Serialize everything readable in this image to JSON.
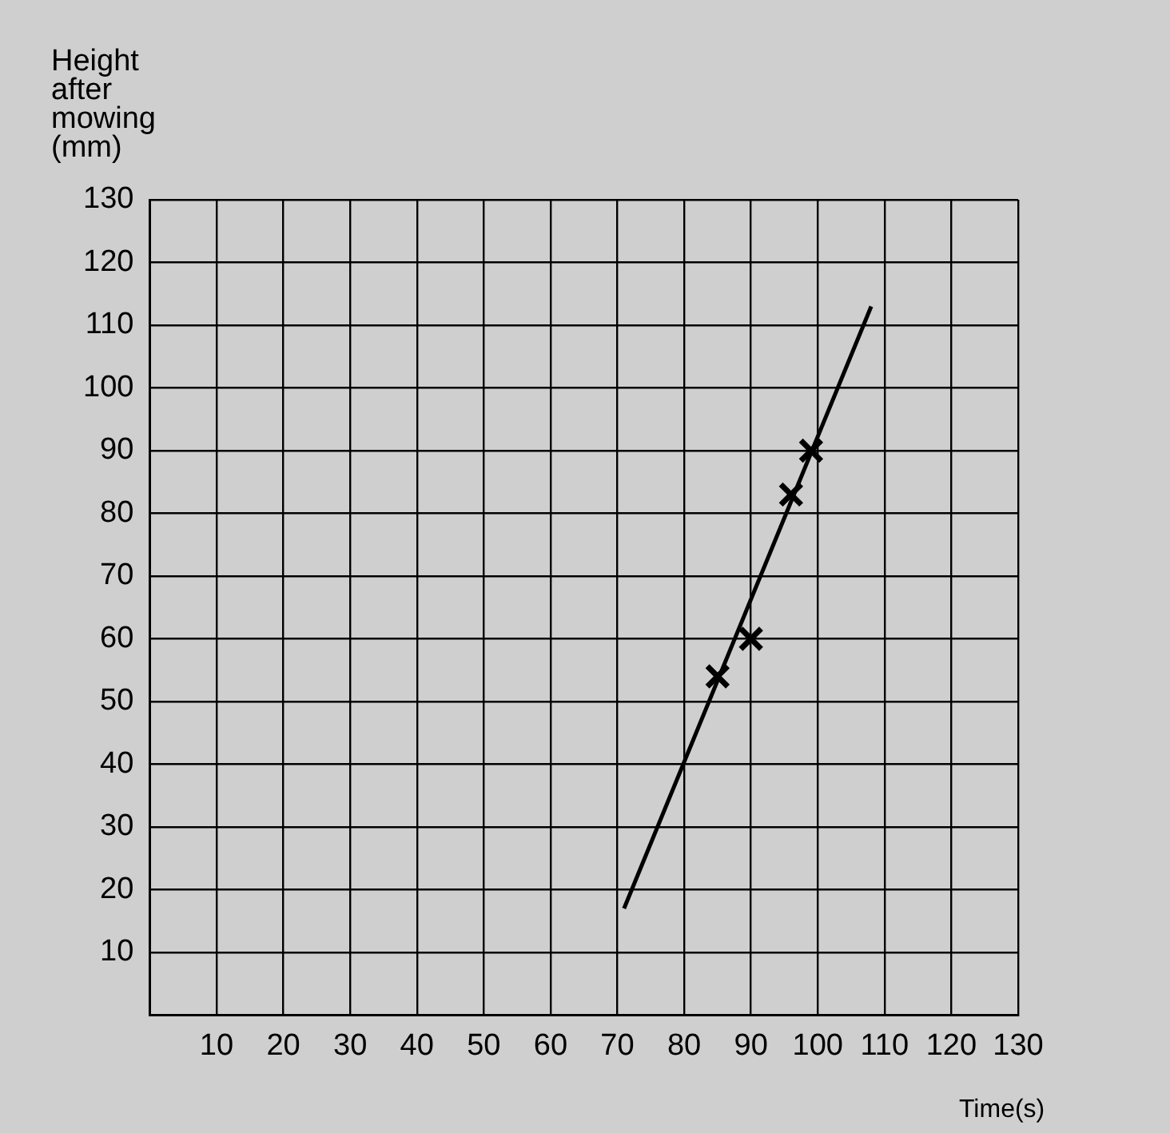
{
  "chart_data": {
    "type": "scatter",
    "xlabel": "Time(s)",
    "ylabel": "Height after mowing (mm)",
    "xlim": [
      0,
      130
    ],
    "ylim": [
      0,
      130
    ],
    "xticks": [
      10,
      20,
      30,
      40,
      50,
      60,
      70,
      80,
      90,
      100,
      110,
      120,
      130
    ],
    "yticks": [
      10,
      20,
      30,
      40,
      50,
      60,
      70,
      80,
      90,
      100,
      110,
      120,
      130
    ],
    "grid": true,
    "legend": false,
    "marker": "cross",
    "series": [
      {
        "type": "scatter",
        "color": "#000000",
        "x": [
          85,
          90,
          96,
          99
        ],
        "values": [
          54,
          60,
          83,
          90
        ]
      },
      {
        "type": "line",
        "color": "#000000",
        "x": [
          71,
          108
        ],
        "values": [
          17,
          113
        ],
        "marker": "none",
        "line_style": "solid"
      }
    ]
  }
}
